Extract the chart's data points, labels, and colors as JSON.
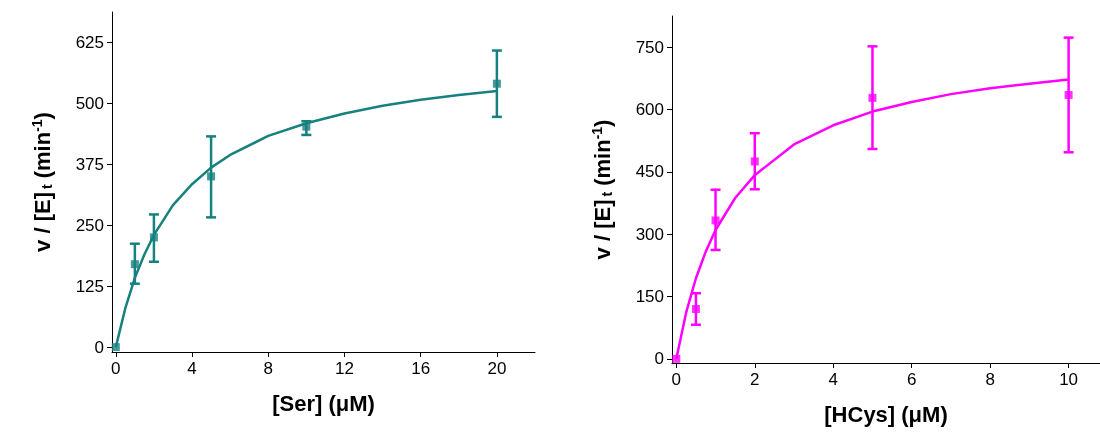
{
  "chart_data": [
    {
      "type": "scatter",
      "xlabel": "[Ser] (μM)",
      "ylabel": "v / [E]$_{t}$ (min$^{-1}$)",
      "xlim": [
        -0.2,
        22
      ],
      "xticks": [
        0,
        4,
        8,
        12,
        16,
        20
      ],
      "ylim": [
        -10,
        687
      ],
      "yticks": [
        0,
        125,
        250,
        375,
        500,
        625
      ],
      "grid": false,
      "marker": "square",
      "series": [
        {
          "color": "#16817f",
          "x": [
            0,
            1,
            2,
            5,
            10,
            20
          ],
          "values": [
            0,
            170,
            225,
            350,
            452,
            540
          ],
          "errors": [
            null,
            [
              130,
              212
            ],
            [
              175,
              272
            ],
            [
              266,
              432
            ],
            [
              435,
              463
            ],
            [
              472,
              608
            ]
          ]
        },
        {
          "type": "line",
          "color": "#16817f",
          "marker": "none",
          "line_style": "solid",
          "x": [
            0,
            0.5,
            1,
            1.5,
            2,
            3,
            4,
            5,
            6,
            8,
            10,
            12,
            14,
            16,
            18,
            20
          ],
          "values": [
            0,
            80,
            142,
            190,
            230,
            291,
            334,
            368,
            394,
            433,
            459,
            479,
            495,
            507,
            517,
            525
          ]
        }
      ]
    },
    {
      "type": "scatter",
      "xlabel": "[HCys] (μM)",
      "ylabel": "v / [E]$_{t}$ (min$^{-1}$)",
      "xlim": [
        -0.11,
        10.8
      ],
      "xticks": [
        0,
        2,
        4,
        6,
        8,
        10
      ],
      "ylim": [
        -10,
        825
      ],
      "yticks": [
        0,
        150,
        300,
        450,
        600,
        750
      ],
      "grid": false,
      "marker": "square",
      "series": [
        {
          "color": "#ff00ff",
          "x": [
            0,
            0.5,
            1,
            2,
            5,
            10
          ],
          "values": [
            0,
            120,
            333,
            475,
            628,
            635
          ],
          "errors": [
            null,
            [
              82,
              158
            ],
            [
              262,
              407
            ],
            [
              408,
              543
            ],
            [
              505,
              752
            ],
            [
              497,
              773
            ]
          ]
        },
        {
          "type": "line",
          "color": "#ff00ff",
          "marker": "none",
          "line_style": "solid",
          "x": [
            0,
            0.25,
            0.5,
            0.75,
            1,
            1.5,
            2,
            3,
            4,
            5,
            6,
            7,
            8,
            9,
            10
          ],
          "values": [
            0,
            111,
            194,
            258,
            310,
            387,
            442,
            516,
            562,
            595,
            618,
            637,
            651,
            662,
            672
          ]
        }
      ]
    }
  ]
}
